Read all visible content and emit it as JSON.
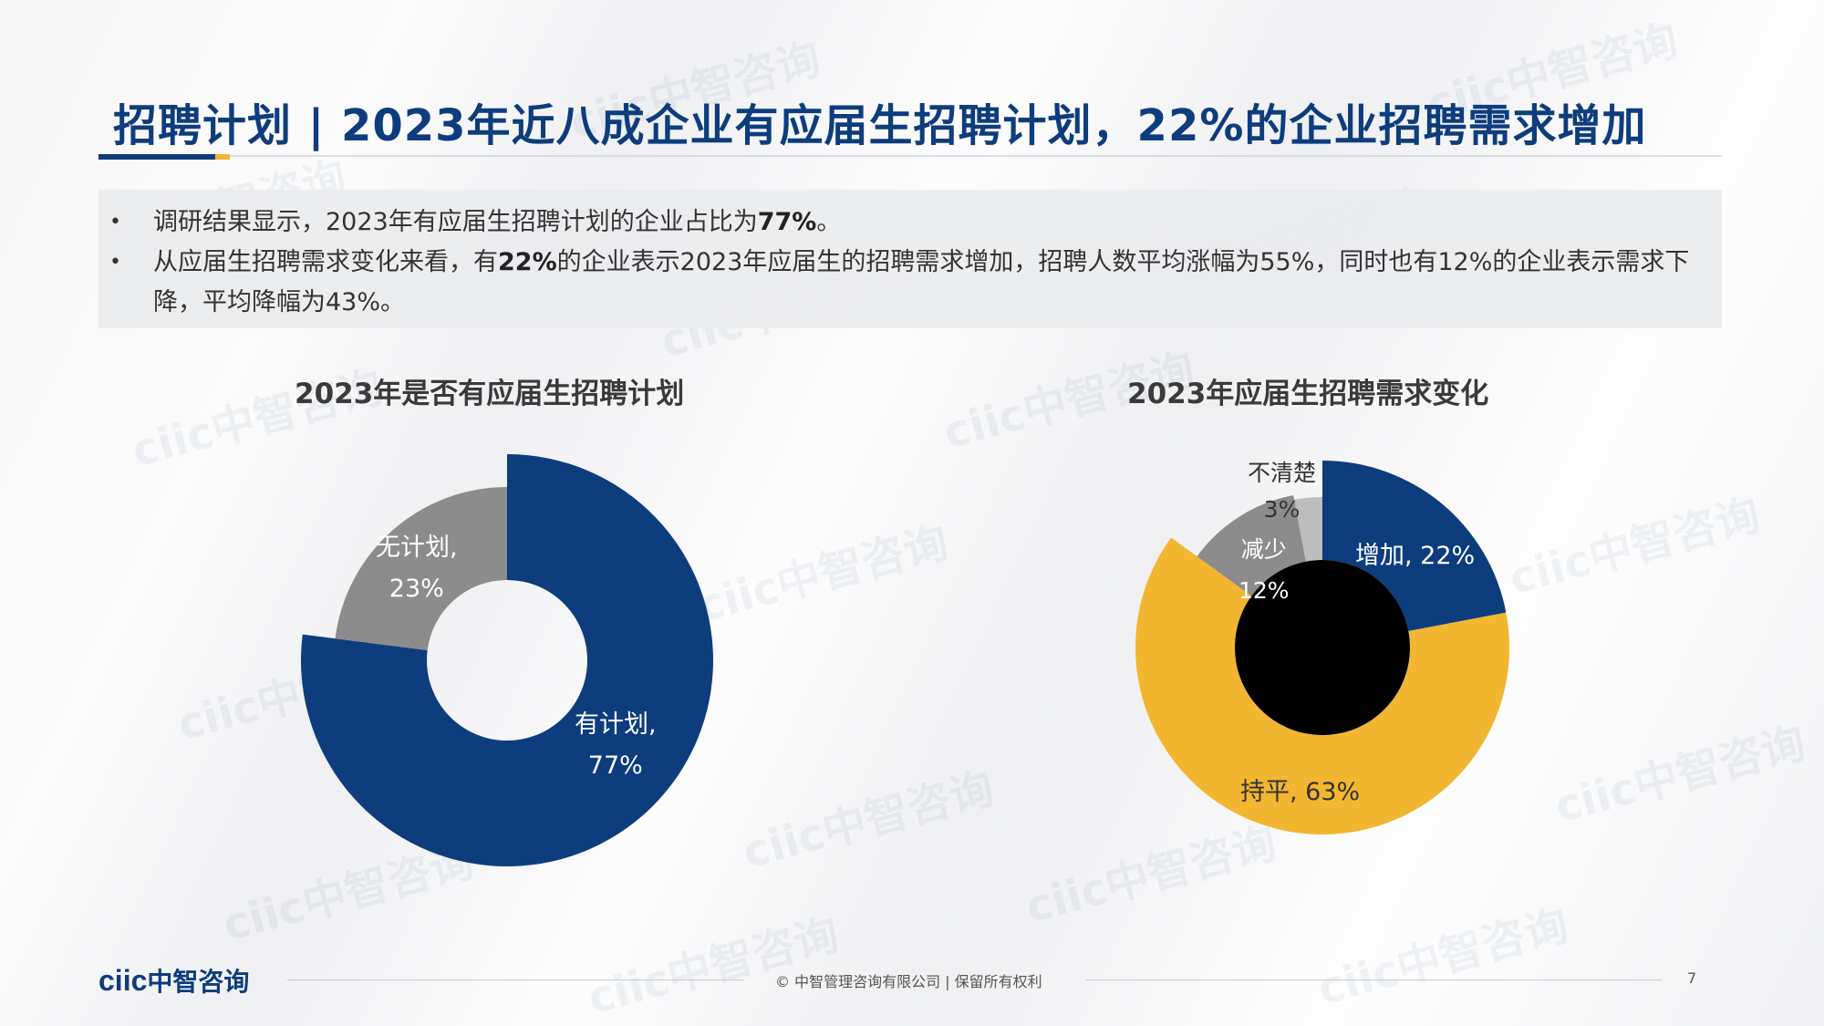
{
  "slide": {
    "title": "招聘计划 | 2023年近八成企业有应届生招聘计划，22%的企业招聘需求增加",
    "bullets": [
      {
        "pre": "调研结果显示，2023年有应届生招聘计划的企业占比为",
        "bold": "77%",
        "post": "。"
      },
      {
        "pre": "从应届生招聘需求变化来看，有",
        "bold": "22%",
        "post": "的企业表示2023年应届生的招聘需求增加，招聘人数平均涨幅为55%，同时也有12%的企业表示需求下降，平均降幅为43%。"
      }
    ]
  },
  "chart_data": [
    {
      "type": "pie",
      "title": "2023年是否有应届生招聘计划",
      "slices": [
        {
          "label": "有计划,",
          "percent_text": "77%",
          "value": 77,
          "color": "#0d3d7d"
        },
        {
          "label": "无计划,",
          "percent_text": "23%",
          "value": 23,
          "color": "#8c8c8c"
        }
      ]
    },
    {
      "type": "pie",
      "title": "2023年应届生招聘需求变化",
      "slices": [
        {
          "label": "增加, 22%",
          "value": 22,
          "color": "#0d3d7d"
        },
        {
          "label": "持平, 63%",
          "value": 63,
          "color": "#f2b630"
        },
        {
          "label": "减少",
          "percent_text": "12%",
          "value": 12,
          "color": "#8c8c8c"
        },
        {
          "label": "不清楚",
          "percent_text": "3%",
          "value": 3,
          "color": "#bdbdbd"
        }
      ]
    }
  ],
  "footer": {
    "logo_text": "ciic",
    "logo_cn": "中智咨询",
    "copyright": "© 中智管理咨询有限公司 | 保留所有权利",
    "page_number": "7"
  },
  "watermark": {
    "text": "ciic中智咨询"
  }
}
